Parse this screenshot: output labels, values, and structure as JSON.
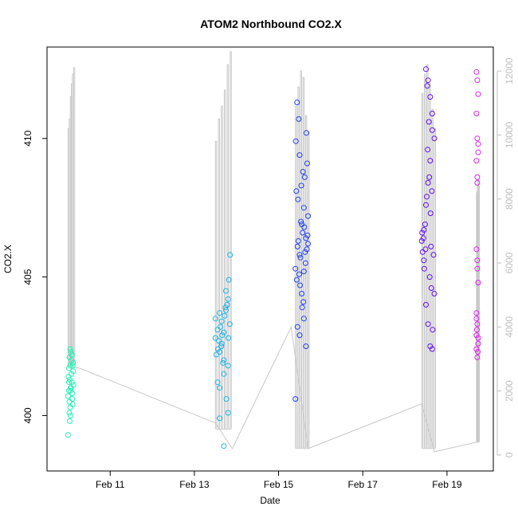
{
  "chart_data": {
    "type": "scatter",
    "title": "ATOM2 Northbound CO2.X",
    "xlabel": "Date",
    "ylabel": "CO2.X",
    "x_ticks": [
      "Feb 11",
      "Feb 13",
      "Feb 15",
      "Feb 17",
      "Feb 19"
    ],
    "x_tick_days": [
      11,
      13,
      15,
      17,
      19
    ],
    "xlim_days": [
      9.5,
      20.1
    ],
    "y_ticks": [
      400,
      405,
      410
    ],
    "ylim": [
      398.0,
      413.3
    ],
    "y2_ticks": [
      0,
      2000,
      4000,
      6000,
      8000,
      10000,
      12000
    ],
    "y2lim": [
      -500,
      12750
    ],
    "grid": false,
    "colors": {
      "frame": "#000000",
      "secondary_line": "#c8c8c8",
      "secondary_axis": "#bdbdbd",
      "series": [
        "#22f0b0",
        "#1ab4e6",
        "#2040ee",
        "#6010ee",
        "#e020ee"
      ]
    },
    "series": [
      {
        "color": "#22f0b0",
        "points": [
          [
            10.0,
            400.7
          ],
          [
            10.02,
            401.2
          ],
          [
            10.03,
            402.1
          ],
          [
            10.05,
            401.8
          ],
          [
            10.06,
            400.9
          ],
          [
            10.08,
            401.5
          ],
          [
            10.0,
            399.3
          ],
          [
            10.03,
            400.1
          ],
          [
            10.05,
            402.4
          ],
          [
            10.07,
            401.0
          ],
          [
            10.1,
            400.6
          ],
          [
            10.12,
            401.9
          ],
          [
            10.04,
            401.3
          ],
          [
            10.09,
            402.2
          ],
          [
            10.11,
            400.4
          ],
          [
            10.02,
            401.7
          ],
          [
            10.06,
            400.0
          ],
          [
            10.13,
            401.1
          ],
          [
            10.08,
            402.0
          ],
          [
            10.01,
            401.4
          ],
          [
            10.1,
            400.8
          ],
          [
            10.04,
            399.8
          ],
          [
            10.12,
            401.6
          ],
          [
            10.07,
            402.3
          ],
          [
            10.03,
            400.5
          ],
          [
            10.09,
            401.2
          ],
          [
            10.05,
            400.3
          ],
          [
            10.11,
            401.8
          ],
          [
            10.06,
            401.0
          ],
          [
            10.02,
            400.9
          ]
        ]
      },
      {
        "color": "#1ab4e6",
        "points": [
          [
            13.5,
            402.8
          ],
          [
            13.55,
            403.1
          ],
          [
            13.6,
            402.3
          ],
          [
            13.65,
            403.4
          ],
          [
            13.7,
            402.0
          ],
          [
            13.75,
            403.8
          ],
          [
            13.8,
            404.2
          ],
          [
            13.55,
            401.2
          ],
          [
            13.6,
            401.0
          ],
          [
            13.65,
            402.6
          ],
          [
            13.7,
            403.0
          ],
          [
            13.75,
            404.5
          ],
          [
            13.82,
            404.9
          ],
          [
            13.85,
            405.8
          ],
          [
            13.6,
            399.9
          ],
          [
            13.7,
            398.9
          ],
          [
            13.8,
            400.1
          ],
          [
            13.5,
            403.5
          ],
          [
            13.58,
            402.7
          ],
          [
            13.62,
            403.2
          ],
          [
            13.68,
            401.9
          ],
          [
            13.72,
            403.6
          ],
          [
            13.78,
            404.0
          ],
          [
            13.84,
            403.3
          ],
          [
            13.56,
            402.4
          ],
          [
            13.66,
            402.9
          ],
          [
            13.76,
            400.6
          ],
          [
            13.74,
            403.9
          ],
          [
            13.52,
            402.2
          ],
          [
            13.64,
            402.5
          ],
          [
            13.81,
            402.8
          ],
          [
            13.7,
            401.5
          ],
          [
            13.6,
            403.7
          ],
          [
            13.8,
            401.8
          ]
        ]
      },
      {
        "color": "#2040ee",
        "points": [
          [
            15.4,
            405.3
          ],
          [
            15.45,
            406.1
          ],
          [
            15.5,
            405.8
          ],
          [
            15.55,
            406.9
          ],
          [
            15.6,
            405.2
          ],
          [
            15.65,
            406.4
          ],
          [
            15.7,
            407.2
          ],
          [
            15.42,
            408.1
          ],
          [
            15.48,
            410.7
          ],
          [
            15.44,
            411.3
          ],
          [
            15.5,
            409.4
          ],
          [
            15.58,
            408.8
          ],
          [
            15.62,
            408.6
          ],
          [
            15.68,
            409.1
          ],
          [
            15.45,
            403.2
          ],
          [
            15.5,
            402.9
          ],
          [
            15.6,
            403.5
          ],
          [
            15.65,
            402.5
          ],
          [
            15.55,
            404.4
          ],
          [
            15.4,
            400.6
          ],
          [
            15.52,
            405.7
          ],
          [
            15.57,
            406.6
          ],
          [
            15.63,
            405.9
          ],
          [
            15.7,
            406.2
          ],
          [
            15.46,
            407.8
          ],
          [
            15.54,
            408.3
          ],
          [
            15.6,
            407.5
          ],
          [
            15.66,
            410.2
          ],
          [
            15.43,
            404.9
          ],
          [
            15.49,
            405.1
          ],
          [
            15.56,
            403.9
          ],
          [
            15.61,
            406.8
          ],
          [
            15.67,
            406.0
          ],
          [
            15.41,
            409.9
          ],
          [
            15.53,
            407.0
          ],
          [
            15.59,
            404.1
          ],
          [
            15.64,
            405.5
          ],
          [
            15.69,
            406.5
          ],
          [
            15.47,
            406.3
          ],
          [
            15.51,
            404.7
          ]
        ]
      },
      {
        "color": "#6010ee",
        "points": [
          [
            18.4,
            406.3
          ],
          [
            18.45,
            406.7
          ],
          [
            18.5,
            407.6
          ],
          [
            18.55,
            408.4
          ],
          [
            18.6,
            409.2
          ],
          [
            18.65,
            410.3
          ],
          [
            18.5,
            412.5
          ],
          [
            18.55,
            412.1
          ],
          [
            18.6,
            411.5
          ],
          [
            18.65,
            410.9
          ],
          [
            18.7,
            410.0
          ],
          [
            18.45,
            405.6
          ],
          [
            18.5,
            404.0
          ],
          [
            18.55,
            403.3
          ],
          [
            18.6,
            402.5
          ],
          [
            18.65,
            402.4
          ],
          [
            18.7,
            404.4
          ],
          [
            18.42,
            405.9
          ],
          [
            18.48,
            406.9
          ],
          [
            18.52,
            407.9
          ],
          [
            18.58,
            408.6
          ],
          [
            18.62,
            406.1
          ],
          [
            18.68,
            405.8
          ],
          [
            18.44,
            406.4
          ],
          [
            18.46,
            405.3
          ],
          [
            18.54,
            409.6
          ],
          [
            18.66,
            403.1
          ],
          [
            18.64,
            408.1
          ],
          [
            18.57,
            410.6
          ],
          [
            18.53,
            411.9
          ],
          [
            18.49,
            406.0
          ],
          [
            18.61,
            407.3
          ],
          [
            18.59,
            405.0
          ],
          [
            18.63,
            404.6
          ],
          [
            18.41,
            406.6
          ]
        ]
      },
      {
        "color": "#e020ee",
        "points": [
          [
            19.7,
            412.4
          ],
          [
            19.72,
            412.1
          ],
          [
            19.74,
            411.6
          ],
          [
            19.7,
            410.9
          ],
          [
            19.72,
            410.0
          ],
          [
            19.74,
            409.5
          ],
          [
            19.7,
            409.2
          ],
          [
            19.72,
            408.6
          ],
          [
            19.7,
            406.0
          ],
          [
            19.72,
            405.3
          ],
          [
            19.74,
            404.8
          ],
          [
            19.7,
            403.7
          ],
          [
            19.72,
            403.3
          ],
          [
            19.74,
            402.8
          ],
          [
            19.7,
            402.4
          ],
          [
            19.72,
            402.1
          ],
          [
            19.74,
            402.6
          ],
          [
            19.7,
            402.9
          ],
          [
            19.72,
            405.6
          ],
          [
            19.74,
            409.8
          ],
          [
            19.71,
            403.1
          ],
          [
            19.73,
            402.3
          ],
          [
            19.7,
            403.5
          ],
          [
            19.72,
            408.4
          ]
        ]
      }
    ],
    "secondary_series": {
      "axis": "right",
      "type": "line",
      "spikes": [
        {
          "base": 2800,
          "tops": [
            10200,
            10500,
            11200,
            11600,
            11900,
            12100
          ]
        },
        {
          "base": 800,
          "tops": [
            9800,
            10500,
            10900,
            11400,
            12200,
            12600
          ]
        },
        {
          "base": 200,
          "tops": [
            10900,
            11500,
            12000,
            11800,
            10600,
            10100
          ]
        },
        {
          "base": 200,
          "tops": [
            11300,
            11900,
            12200,
            11600,
            10800,
            10200
          ]
        },
        {
          "base": 400,
          "tops": [
            8200,
            8600,
            8400
          ]
        }
      ],
      "path": [
        [
          10.0,
          2800
        ],
        [
          10.3,
          2700
        ],
        [
          13.5,
          1000
        ],
        [
          13.9,
          200
        ],
        [
          15.3,
          4000
        ],
        [
          15.7,
          200
        ],
        [
          18.4,
          1600
        ],
        [
          18.7,
          100
        ],
        [
          19.7,
          400
        ]
      ]
    }
  }
}
